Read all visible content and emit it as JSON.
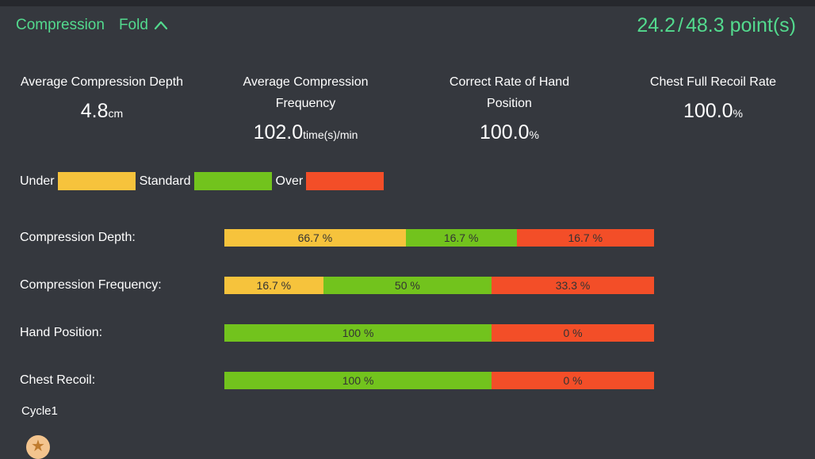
{
  "header": {
    "title": "Compression",
    "fold_label": "Fold",
    "score_current": "24.2",
    "score_separator": "/",
    "score_total": "48.3",
    "score_unit": "point(s)"
  },
  "stats": [
    {
      "label": "Average Compression Depth",
      "value": "4.8",
      "unit": "cm"
    },
    {
      "label": "Average Compression Frequency",
      "value": "102.0",
      "unit": "time(s)/min"
    },
    {
      "label": "Correct Rate of Hand Position",
      "value": "100.0",
      "unit": "%"
    },
    {
      "label": "Chest Full Recoil Rate",
      "value": "100.0",
      "unit": "%"
    }
  ],
  "colors": {
    "accent_green_text": "#53da8e",
    "under": "#f6c33c",
    "standard": "#72c31d",
    "over": "#f34e28",
    "star_circle": "#f3c48e",
    "star_glyph": "#bf7b2e"
  },
  "legend": [
    {
      "label": "Under",
      "color": "#f6c33c"
    },
    {
      "label": "Standard",
      "color": "#72c31d"
    },
    {
      "label": "Over",
      "color": "#f34e28"
    }
  ],
  "chart_data": {
    "type": "bar",
    "orientation": "horizontal-stacked",
    "legend_entries": [
      "Under",
      "Standard",
      "Over"
    ],
    "rows": [
      {
        "label": "Compression Depth:",
        "segments": [
          {
            "status": "under",
            "value": 66.7,
            "value_label": "66.7 %",
            "color": "#f6c33c",
            "width_pct": 42.2
          },
          {
            "status": "standard",
            "value": 16.7,
            "value_label": "16.7 %",
            "color": "#72c31d",
            "width_pct": 25.8
          },
          {
            "status": "over",
            "value": 16.7,
            "value_label": "16.7 %",
            "color": "#f34e28",
            "width_pct": 32.0
          }
        ]
      },
      {
        "label": "Compression Frequency:",
        "segments": [
          {
            "status": "under",
            "value": 16.7,
            "value_label": "16.7 %",
            "color": "#f6c33c",
            "width_pct": 23.0
          },
          {
            "status": "standard",
            "value": 50,
            "value_label": "50 %",
            "color": "#72c31d",
            "width_pct": 39.2
          },
          {
            "status": "over",
            "value": 33.3,
            "value_label": "33.3 %",
            "color": "#f34e28",
            "width_pct": 37.8
          }
        ]
      },
      {
        "label": "Hand Position:",
        "segments": [
          {
            "status": "standard",
            "value": 100,
            "value_label": "100 %",
            "color": "#72c31d",
            "width_pct": 62.2
          },
          {
            "status": "over",
            "value": 0,
            "value_label": "0 %",
            "color": "#f34e28",
            "width_pct": 37.8
          }
        ]
      },
      {
        "label": "Chest Recoil:",
        "segments": [
          {
            "status": "standard",
            "value": 100,
            "value_label": "100 %",
            "color": "#72c31d",
            "width_pct": 62.2
          },
          {
            "status": "over",
            "value": 0,
            "value_label": "0 %",
            "color": "#f34e28",
            "width_pct": 37.8
          }
        ]
      }
    ]
  },
  "cycle_label": "Cycle1",
  "star_icon": "star-marker"
}
